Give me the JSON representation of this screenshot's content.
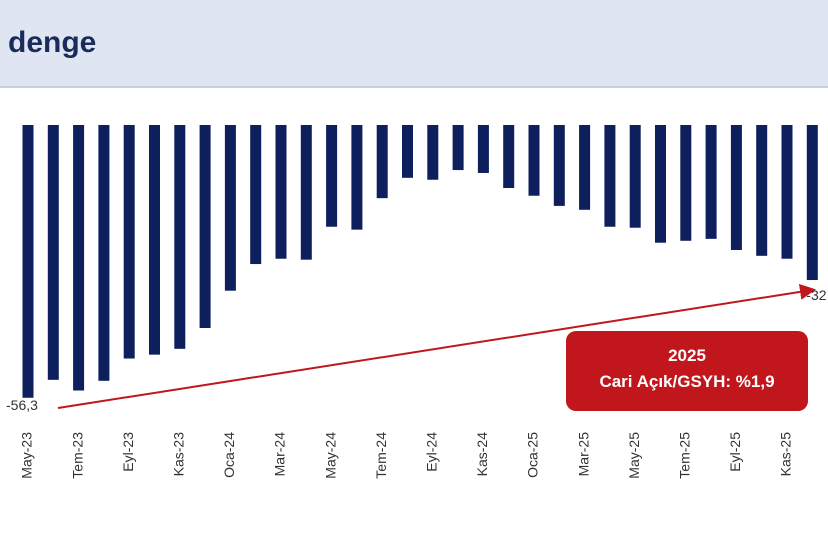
{
  "header": {
    "title": "denge"
  },
  "chart_data": {
    "type": "bar",
    "categories": [
      "May-23",
      null,
      "Tem-23",
      null,
      "Eyl-23",
      null,
      "Kas-23",
      null,
      "Oca-24",
      null,
      "Mar-24",
      null,
      "May-24",
      null,
      "Tem-24",
      null,
      "Eyl-24",
      null,
      "Kas-24",
      null,
      "Oca-25",
      null,
      "Mar-25",
      null,
      "May-25",
      null,
      "Tem-25",
      null,
      "Eyl-25",
      null,
      "Kas-25",
      null
    ],
    "values": [
      -56.3,
      -52.6,
      -54.8,
      -52.8,
      -48.2,
      -47.4,
      -46.2,
      -41.9,
      -34.2,
      -28.7,
      -27.6,
      -27.8,
      -21.0,
      -21.6,
      -15.1,
      -10.9,
      -11.3,
      -9.3,
      -9.9,
      -13.0,
      -14.6,
      -16.7,
      -17.5,
      -21.0,
      -21.2,
      -24.3,
      -23.9,
      -23.5,
      -25.8,
      -27.0,
      -27.6,
      -32
    ],
    "value_labels": [
      "-56,3",
      null,
      null,
      null,
      null,
      null,
      null,
      null,
      null,
      null,
      null,
      null,
      null,
      null,
      null,
      null,
      null,
      null,
      null,
      null,
      null,
      null,
      null,
      null,
      null,
      null,
      null,
      null,
      null,
      null,
      null,
      "-32"
    ],
    "color": "#0d1f5c",
    "ylim": [
      -58,
      0
    ],
    "annotation": {
      "title": "2025",
      "text": "Cari Açık/GSYH: %1,9"
    }
  }
}
